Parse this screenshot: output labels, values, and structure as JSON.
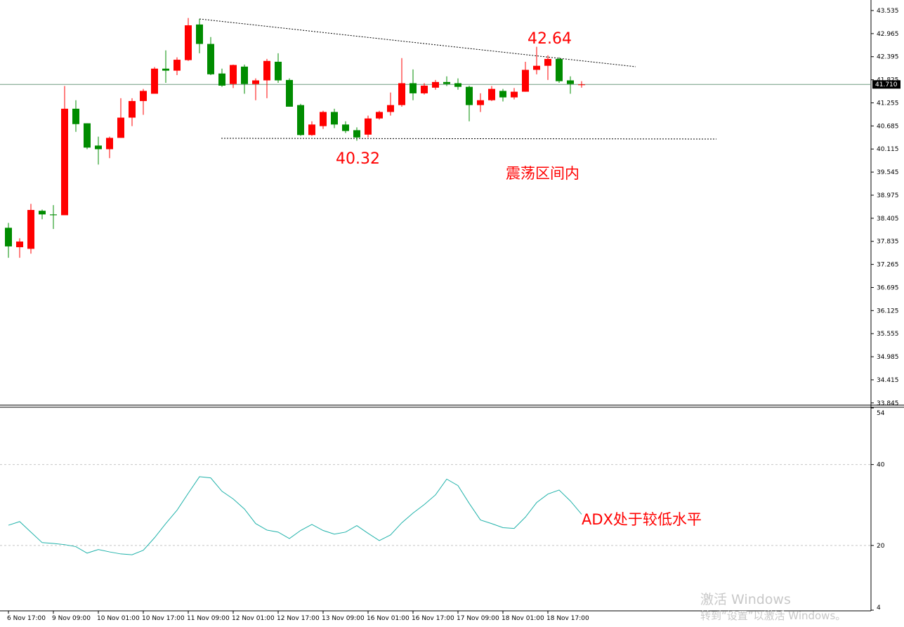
{
  "chart_data": [
    {
      "type": "candlestick",
      "categories": [
        "6 Nov 17:00",
        null,
        null,
        null,
        "9 Nov 09:00",
        null,
        null,
        null,
        "10 Nov 01:00",
        null,
        null,
        null,
        "10 Nov 17:00",
        null,
        null,
        null,
        "11 Nov 09:00",
        null,
        null,
        null,
        "12 Nov 01:00",
        null,
        null,
        null,
        "12 Nov 17:00",
        null,
        null,
        null,
        "13 Nov 09:00",
        null,
        null,
        null,
        "16 Nov 01:00",
        null,
        null,
        null,
        "16 Nov 17:00",
        null,
        null,
        null,
        "17 Nov 09:00",
        null,
        null,
        null,
        "18 Nov 01:00",
        null,
        null,
        null,
        "18 Nov 17:00",
        null,
        null,
        null
      ],
      "open": [
        38.17,
        37.69,
        37.65,
        38.59,
        38.5,
        38.48,
        41.11,
        40.75,
        40.2,
        40.11,
        40.39,
        40.89,
        41.3,
        41.48,
        42.1,
        42.05,
        42.31,
        43.19,
        42.71,
        41.98,
        41.72,
        42.15,
        41.72,
        41.81,
        42.27,
        41.82,
        41.2,
        40.46,
        40.68,
        41.03,
        40.72,
        40.58,
        40.47,
        40.87,
        41.03,
        41.2,
        41.74,
        41.49,
        41.63,
        41.77,
        41.74,
        41.65,
        41.2,
        41.32,
        41.55,
        41.39,
        41.53,
        42.07,
        42.17,
        42.34,
        41.81,
        41.7
      ],
      "high": [
        38.29,
        37.91,
        38.76,
        38.62,
        38.73,
        41.67,
        41.32,
        40.75,
        40.42,
        40.42,
        41.37,
        41.37,
        41.6,
        42.14,
        42.55,
        42.38,
        43.35,
        43.33,
        42.88,
        42.1,
        42.2,
        42.2,
        41.86,
        42.34,
        42.48,
        41.86,
        41.23,
        40.8,
        41.06,
        41.11,
        40.8,
        40.65,
        40.94,
        41.06,
        41.51,
        42.36,
        42.08,
        41.74,
        41.82,
        41.91,
        41.86,
        41.68,
        41.49,
        41.67,
        41.6,
        41.62,
        42.27,
        42.64,
        42.43,
        42.38,
        41.91,
        41.79
      ],
      "low": [
        37.43,
        37.43,
        37.53,
        38.38,
        38.14,
        38.48,
        40.54,
        40.11,
        39.73,
        39.89,
        40.39,
        40.68,
        40.96,
        41.48,
        41.75,
        41.94,
        42.29,
        42.48,
        41.94,
        41.65,
        41.62,
        41.48,
        41.32,
        41.37,
        41.75,
        41.16,
        40.44,
        40.44,
        40.61,
        40.63,
        40.51,
        40.32,
        40.4,
        40.84,
        40.94,
        41.16,
        41.32,
        41.46,
        41.58,
        41.67,
        41.58,
        40.8,
        41.03,
        41.3,
        41.29,
        41.34,
        41.53,
        41.96,
        41.82,
        41.75,
        41.48,
        41.63
      ],
      "close": [
        37.71,
        37.83,
        38.61,
        38.5,
        38.48,
        41.11,
        40.73,
        40.15,
        40.11,
        40.39,
        40.89,
        41.3,
        41.55,
        42.1,
        42.05,
        42.32,
        43.17,
        42.71,
        41.96,
        41.68,
        42.19,
        41.72,
        41.81,
        42.29,
        41.81,
        41.16,
        40.46,
        40.72,
        41.03,
        40.72,
        40.56,
        40.4,
        40.87,
        41.03,
        41.2,
        41.74,
        41.49,
        41.68,
        41.77,
        41.72,
        41.65,
        41.2,
        41.32,
        41.6,
        41.39,
        41.53,
        42.07,
        42.17,
        42.34,
        41.79,
        41.72,
        41.71
      ],
      "up_color": "#ff0000",
      "down_color": "#008c00",
      "ylim": [
        33.79,
        43.795
      ],
      "yticks": [
        43.535,
        42.965,
        42.395,
        41.825,
        41.255,
        40.685,
        40.115,
        39.545,
        38.975,
        38.405,
        37.835,
        37.265,
        36.695,
        36.125,
        35.555,
        34.985,
        34.415,
        33.845
      ],
      "last_price": {
        "value": 41.71,
        "label": "41.710"
      },
      "annotations": [
        "42.64",
        "40.32",
        "震荡区间内"
      ]
    },
    {
      "type": "line",
      "series": [
        {
          "name": "ADX",
          "color": "#20b2aa",
          "values": [
            25.0,
            25.9,
            23.3,
            20.7,
            20.5,
            20.2,
            19.7,
            18.1,
            19.0,
            18.4,
            17.9,
            17.7,
            18.8,
            21.9,
            25.4,
            28.7,
            32.9,
            37.0,
            36.7,
            33.4,
            31.5,
            29.0,
            25.4,
            23.8,
            23.3,
            21.7,
            23.7,
            25.2,
            23.7,
            22.8,
            23.3,
            24.9,
            23.0,
            21.2,
            22.6,
            25.6,
            28.0,
            30.1,
            32.5,
            36.4,
            34.8,
            30.4,
            26.3,
            25.4,
            24.4,
            24.2,
            27.0,
            30.6,
            32.7,
            33.7,
            31.0,
            27.7
          ]
        }
      ],
      "ylim": [
        4,
        54
      ],
      "yticks": [
        54,
        40,
        20,
        4
      ],
      "annotations": [
        "ADX处于较低水平"
      ]
    }
  ],
  "watermark": [
    "激活 Windows",
    "转到“设置”以激活 Windows。"
  ]
}
